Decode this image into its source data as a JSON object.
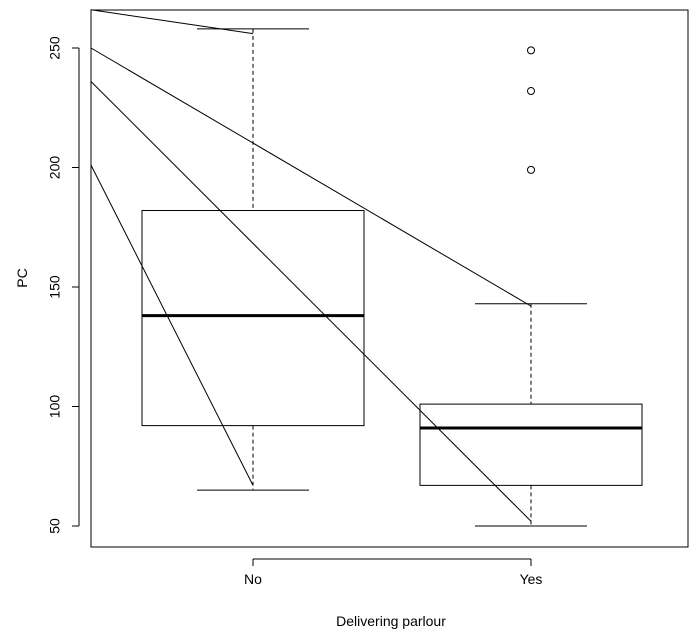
{
  "chart_data": {
    "type": "boxplot",
    "xlabel": "Delivering parlour",
    "ylabel": "PC",
    "ylim": [
      45,
      266
    ],
    "y_ticks": [
      50,
      100,
      150,
      200,
      250
    ],
    "categories": [
      "No",
      "Yes"
    ],
    "boxes": [
      {
        "category": "No",
        "whisker_low": 65,
        "q1": 92,
        "median": 138,
        "q3": 182,
        "whisker_high": 258,
        "outliers": []
      },
      {
        "category": "Yes",
        "whisker_low": 50,
        "q1": 67,
        "median": 91,
        "q3": 101,
        "whisker_high": 143,
        "outliers": [
          199,
          232,
          249
        ]
      }
    ],
    "line_segments": [
      {
        "from": {
          "x": "left-edge",
          "y": 266
        },
        "to": {
          "category": "No",
          "y": 256
        }
      },
      {
        "from": {
          "x": "left-edge",
          "y": 250
        },
        "to": {
          "category": "Yes",
          "y": 142
        }
      },
      {
        "from": {
          "x": "left-edge",
          "y": 236
        },
        "to": {
          "category": "Yes",
          "y": 52
        }
      },
      {
        "from": {
          "x": "left-edge",
          "y": 201
        },
        "to": {
          "category": "No",
          "y": 67
        }
      }
    ],
    "grid": false,
    "legend": "none",
    "colors": {
      "stroke": "#000000",
      "background": "#ffffff"
    }
  }
}
